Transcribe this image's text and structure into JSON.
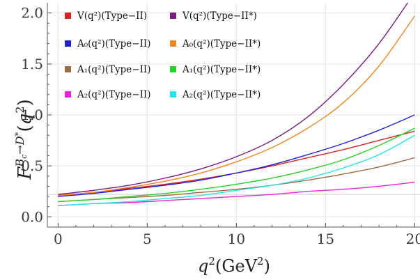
{
  "chart_data": {
    "type": "line",
    "xlabel": "q²(GeV²)",
    "ylabel": "F^{Bc→D*}(q²)",
    "xlim": [
      -0.6,
      20.3
    ],
    "ylim": [
      -0.1,
      2.1
    ],
    "xticks": [
      "0",
      "5",
      "10",
      "15",
      "20"
    ],
    "yticks": [
      "0.0",
      "0.5",
      "1.0",
      "1.5",
      "2.0"
    ],
    "grid": true,
    "legend_position": "top-left, two columns",
    "x": [
      0,
      2,
      4,
      6,
      8,
      10,
      12,
      14,
      16,
      18,
      20
    ],
    "series": [
      {
        "name": "V(q²)(Type−II)",
        "color": "#dd1f1f",
        "values": [
          0.21,
          0.24,
          0.28,
          0.32,
          0.37,
          0.43,
          0.5,
          0.58,
          0.66,
          0.75,
          0.84
        ]
      },
      {
        "name": "V(q²)(Type−II*)",
        "color": "#7a1a86",
        "values": [
          0.22,
          0.26,
          0.31,
          0.38,
          0.47,
          0.59,
          0.75,
          0.98,
          1.3,
          1.7,
          2.2
        ]
      },
      {
        "name": "A₀(q²)(Type−II)",
        "color": "#1a22d8",
        "values": [
          0.2,
          0.23,
          0.27,
          0.31,
          0.36,
          0.43,
          0.51,
          0.61,
          0.72,
          0.85,
          1.0
        ]
      },
      {
        "name": "A₀(q²)(Type−II*)",
        "color": "#f0861e",
        "values": [
          0.21,
          0.24,
          0.29,
          0.35,
          0.43,
          0.54,
          0.68,
          0.87,
          1.12,
          1.48,
          1.97
        ]
      },
      {
        "name": "A₁(q²)(Type−II)",
        "color": "#9a6b3c",
        "values": [
          0.15,
          0.17,
          0.19,
          0.21,
          0.24,
          0.27,
          0.31,
          0.36,
          0.42,
          0.49,
          0.58
        ]
      },
      {
        "name": "A₁(q²)(Type−II*)",
        "color": "#22d422",
        "values": [
          0.15,
          0.17,
          0.2,
          0.23,
          0.27,
          0.32,
          0.38,
          0.46,
          0.56,
          0.7,
          0.87
        ]
      },
      {
        "name": "A₂(q²)(Type−II)",
        "color": "#ee22dd",
        "values": [
          0.11,
          0.13,
          0.14,
          0.16,
          0.18,
          0.2,
          0.22,
          0.25,
          0.27,
          0.3,
          0.34
        ]
      },
      {
        "name": "A₂(q²)(Type−II*)",
        "color": "#22e6e6",
        "values": [
          0.11,
          0.13,
          0.15,
          0.18,
          0.21,
          0.26,
          0.31,
          0.38,
          0.48,
          0.61,
          0.8
        ]
      }
    ]
  }
}
